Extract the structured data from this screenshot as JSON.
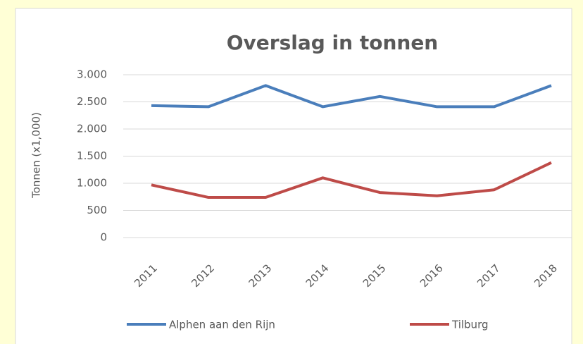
{
  "chart_data": {
    "type": "line",
    "title": "Overslag in tonnen",
    "y_label": "Tonnen (x1,000)",
    "categories": [
      "2011",
      "2012",
      "2013",
      "2014",
      "2015",
      "2016",
      "2017",
      "2018"
    ],
    "series": [
      {
        "name": "Alphen aan den Rijn",
        "color": "#4a7ebb",
        "values": [
          2430,
          2410,
          2800,
          2410,
          2600,
          2410,
          2410,
          2800
        ]
      },
      {
        "name": "Tilburg",
        "color": "#be4b48",
        "values": [
          970,
          740,
          740,
          1100,
          830,
          770,
          880,
          1380
        ]
      }
    ],
    "ylim": [
      0,
      3000
    ],
    "yticks": [
      0,
      500,
      {
        "value": 1000,
        "label": "1.000"
      },
      {
        "value": 1500,
        "label": "1.500"
      },
      {
        "value": 2000,
        "label": "2.000"
      },
      {
        "value": 2500,
        "label": "2.500"
      },
      {
        "value": 3000,
        "label": "3.000"
      }
    ],
    "grid": true,
    "legend": "bottom"
  }
}
